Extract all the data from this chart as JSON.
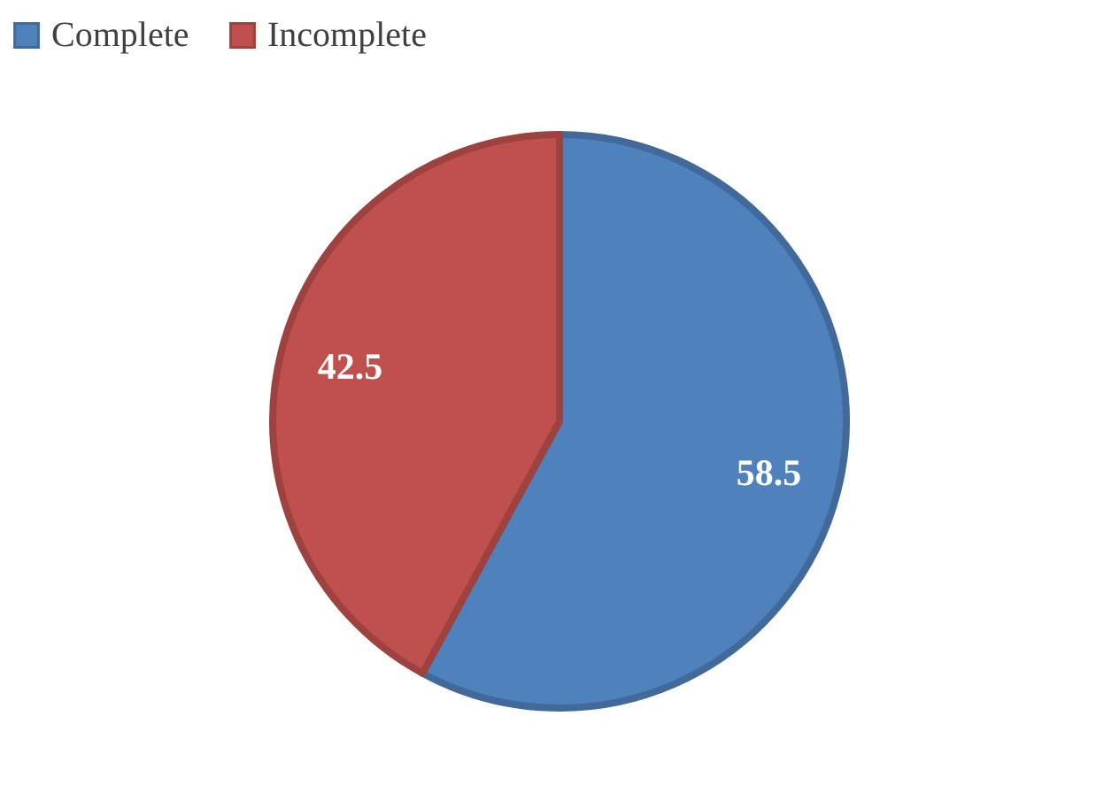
{
  "chart_data": {
    "type": "pie",
    "categories": [
      "Complete",
      "Incomplete"
    ],
    "values": [
      58.5,
      42.5
    ],
    "colors": [
      "#4f81bd",
      "#c0504d"
    ],
    "data_labels": true,
    "legend": "top"
  }
}
